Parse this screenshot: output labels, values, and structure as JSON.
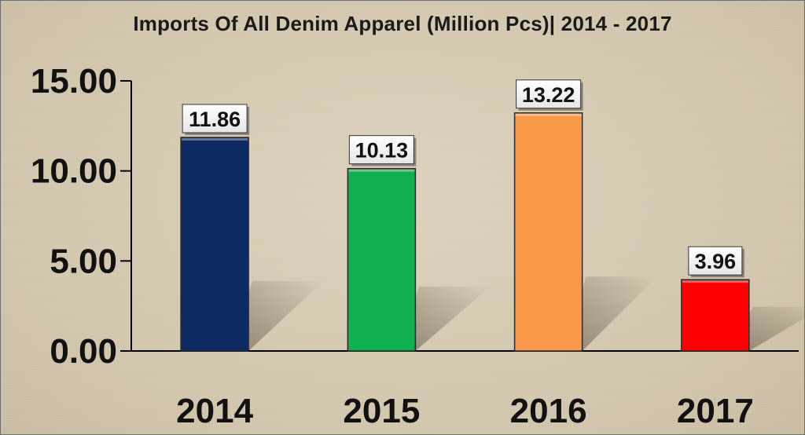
{
  "chart_data": {
    "type": "bar",
    "title": "Imports Of All Denim Apparel (Million Pcs)| 2014 - 2017",
    "xlabel": "",
    "ylabel": "",
    "categories": [
      "2014",
      "2015",
      "2016",
      "2017"
    ],
    "values": [
      11.86,
      10.13,
      13.22,
      3.96
    ],
    "value_labels": [
      "11.86",
      "10.13",
      "13.22",
      "3.96"
    ],
    "bar_colors": [
      "#0e2a63",
      "#10b04f",
      "#f89a4a",
      "#ff0000"
    ],
    "ylim": [
      0,
      15
    ],
    "yticks": [
      0,
      5,
      10,
      15
    ],
    "ytick_labels": [
      "0.00",
      "5.00",
      "10.00",
      "15.00"
    ],
    "grid": false,
    "legend": "none"
  }
}
